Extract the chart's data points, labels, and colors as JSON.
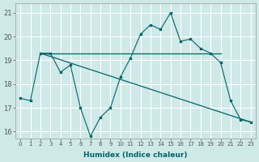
{
  "title": "",
  "xlabel": "Humidex (Indice chaleur)",
  "ylabel": "",
  "bg_color": "#cfe8e8",
  "grid_color": "#ffffff",
  "line_color": "#006666",
  "xlim": [
    -0.5,
    23.5
  ],
  "ylim": [
    15.7,
    21.4
  ],
  "yticks": [
    16,
    17,
    18,
    19,
    20,
    21
  ],
  "xticks": [
    0,
    1,
    2,
    3,
    4,
    5,
    6,
    7,
    8,
    9,
    10,
    11,
    12,
    13,
    14,
    15,
    16,
    17,
    18,
    19,
    20,
    21,
    22,
    23
  ],
  "series": [
    {
      "x": [
        0,
        1,
        2,
        3,
        4,
        5,
        6,
        7,
        8,
        9,
        10,
        11,
        12,
        13,
        14,
        15,
        16,
        17,
        18,
        19,
        20,
        21,
        22,
        23
      ],
      "y": [
        17.4,
        17.3,
        19.3,
        19.3,
        18.5,
        18.8,
        17.0,
        15.8,
        16.6,
        17.0,
        18.3,
        19.1,
        20.1,
        20.5,
        20.3,
        21.0,
        19.8,
        19.9,
        19.5,
        19.3,
        18.9,
        17.3,
        16.5,
        16.4
      ]
    },
    {
      "x": [
        2,
        10,
        19,
        20
      ],
      "y": [
        19.3,
        19.3,
        19.3,
        19.3
      ]
    },
    {
      "x": [
        2,
        23
      ],
      "y": [
        19.3,
        16.4
      ]
    }
  ]
}
